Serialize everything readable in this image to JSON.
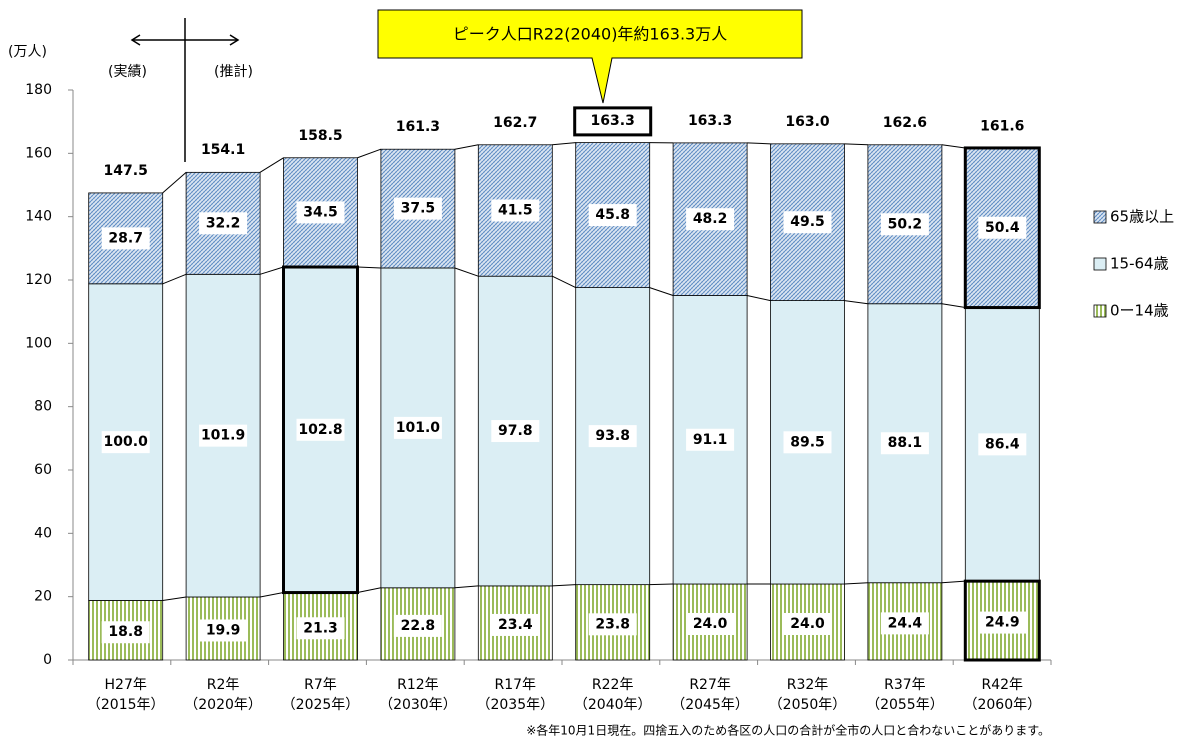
{
  "chart_data": {
    "type": "stacked_bar",
    "categories": [
      "H27年",
      "R2年",
      "R7年",
      "R12年",
      "R17年",
      "R22年",
      "R27年",
      "R32年",
      "R37年",
      "R42年"
    ],
    "category_sublabels": [
      "（2015年）",
      "（2020年）",
      "（2025年）",
      "（2030年）",
      "（2035年）",
      "（2040年）",
      "（2045年）",
      "（2050年）",
      "（2055年）",
      "（2060年）"
    ],
    "series": [
      {
        "name": "0ー14歳",
        "color": "#9bbb59",
        "values": [
          18.8,
          19.9,
          21.3,
          22.8,
          23.4,
          23.8,
          24.0,
          24.0,
          24.4,
          24.9
        ],
        "value_labels": [
          "18.8",
          "19.9",
          "21.3",
          "22.8",
          "23.4",
          "23.8",
          "24.0",
          "24.0",
          "24.4",
          "24.9"
        ]
      },
      {
        "name": "15-64歳",
        "color": "#dbeef4",
        "values": [
          100.0,
          101.9,
          102.8,
          101.0,
          97.8,
          93.8,
          91.1,
          89.5,
          88.1,
          86.4
        ],
        "value_labels": [
          "100.0",
          "101.9",
          "102.8",
          "101.0",
          "97.8",
          "93.8",
          "91.1",
          "89.5",
          "88.1",
          "86.4"
        ]
      },
      {
        "name": "65歳以上",
        "color": "#4f81bd",
        "values": [
          28.7,
          32.2,
          34.5,
          37.5,
          41.5,
          45.8,
          48.2,
          49.5,
          50.2,
          50.4
        ],
        "value_labels": [
          "28.7",
          "32.2",
          "34.5",
          "37.5",
          "41.5",
          "45.8",
          "48.2",
          "49.5",
          "50.2",
          "50.4"
        ]
      }
    ],
    "totals": [
      147.5,
      154.1,
      158.5,
      161.3,
      162.7,
      163.3,
      163.3,
      163.0,
      162.6,
      161.6
    ],
    "total_labels": [
      "147.5",
      "154.1",
      "158.5",
      "161.3",
      "162.7",
      "163.3",
      "163.3",
      "163.0",
      "162.6",
      "161.6"
    ],
    "ylim": [
      0,
      180
    ],
    "yticks": [
      0,
      20,
      40,
      60,
      80,
      100,
      120,
      140,
      160,
      180
    ],
    "y_unit": "(万人)",
    "annotations": {
      "actual": "(実績)",
      "estimate": "(推計)",
      "callout": "ピーク人口R22(2040)年約163.3万人",
      "footnote": "※各年10月1日現在。四捨五入のため各区の人口の合計が全市の人口と合わないことがあります。"
    },
    "legend": "right"
  }
}
